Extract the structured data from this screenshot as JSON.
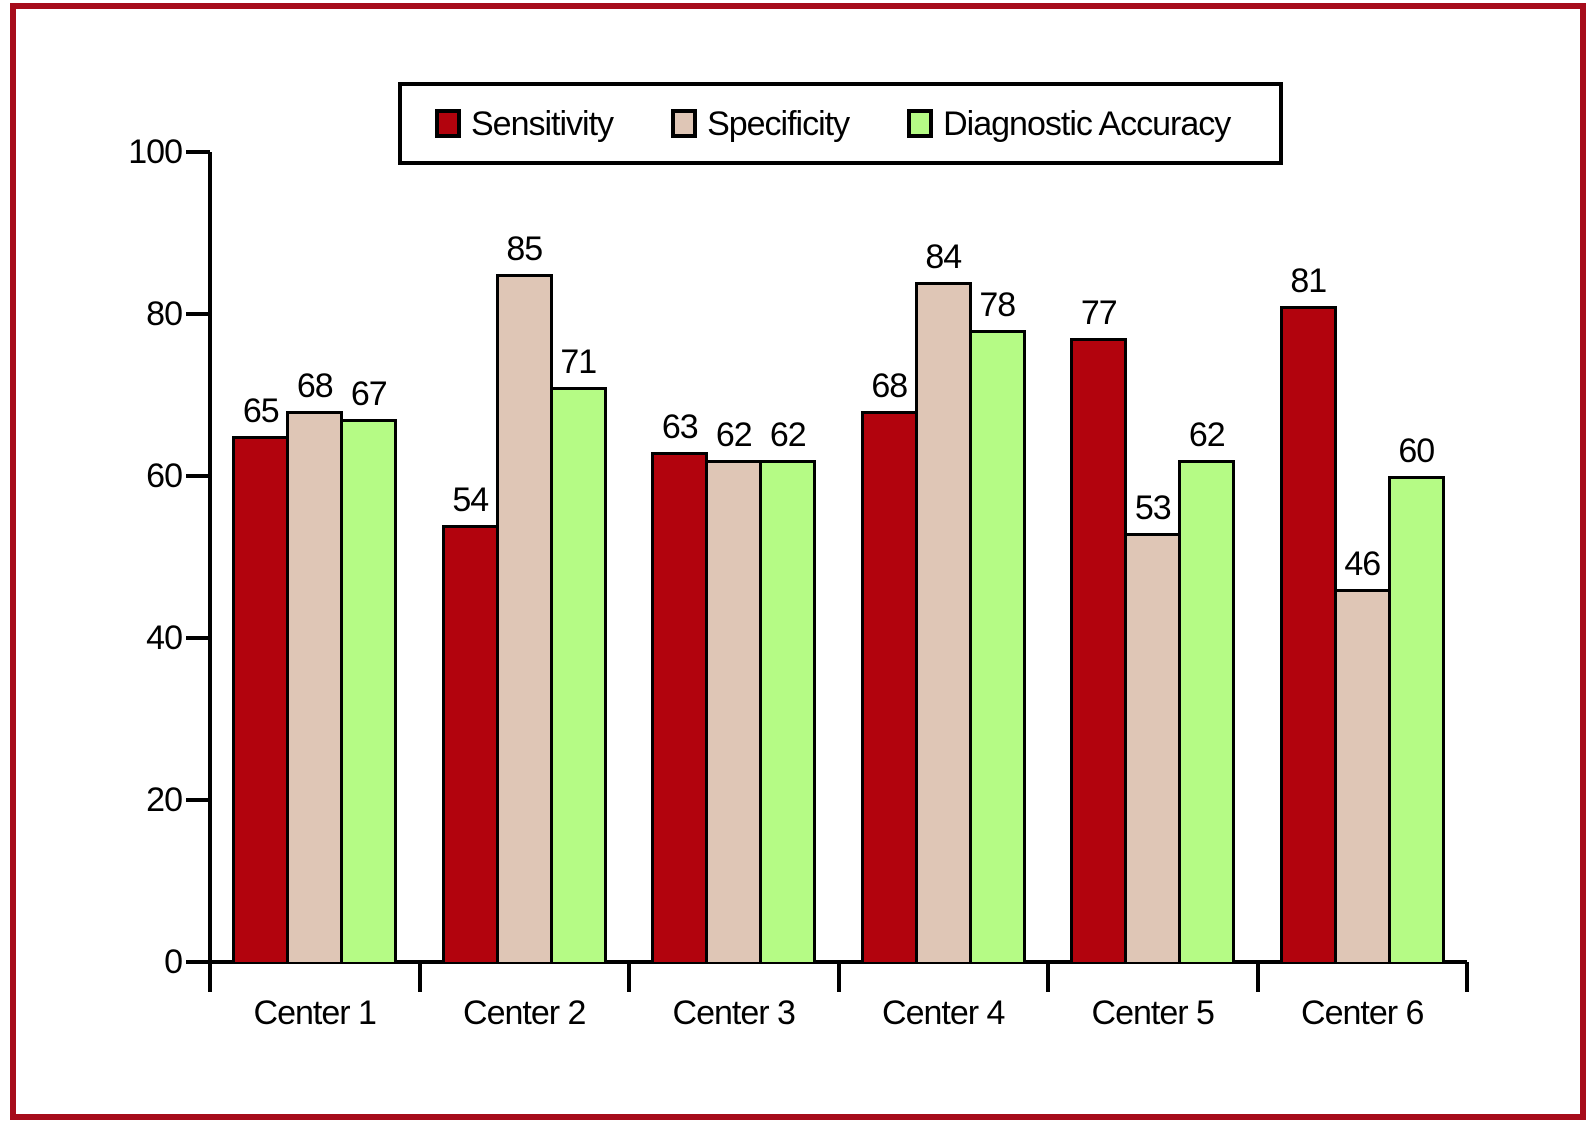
{
  "figure": {
    "frame_color": "#a60c1b",
    "background_color": "#ffffff",
    "axis_color": "#000000",
    "text_color": "#000000"
  },
  "chart_data": {
    "type": "bar",
    "title": "",
    "xlabel": "",
    "ylabel": "",
    "categories": [
      "Center 1",
      "Center 2",
      "Center 3",
      "Center 4",
      "Center 5",
      "Center 6"
    ],
    "series": [
      {
        "name": "Sensitivity",
        "color": "#b2030d",
        "values": [
          65,
          54,
          63,
          68,
          77,
          81
        ]
      },
      {
        "name": "Specificity",
        "color": "#dfc6b6",
        "values": [
          68,
          85,
          62,
          84,
          53,
          46
        ]
      },
      {
        "name": "Diagnostic Accuracy",
        "color": "#b5fb85",
        "values": [
          67,
          71,
          62,
          78,
          62,
          60
        ]
      }
    ],
    "ylim": [
      0,
      100
    ],
    "yticks": [
      0,
      20,
      40,
      60,
      80,
      100
    ],
    "bar_labels": true,
    "grid": false,
    "legend_position": "top"
  }
}
